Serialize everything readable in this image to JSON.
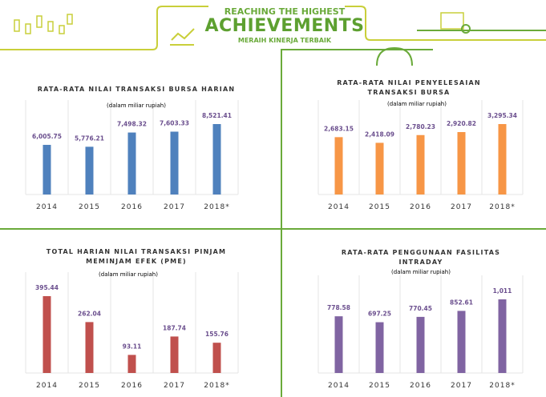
{
  "header": {
    "line1": "REACHING THE HIGHEST",
    "line2": "ACHIEVEMENTS",
    "line3": "MERAIH KINERJA TERBAIK"
  },
  "chart_data": [
    {
      "type": "bar",
      "title": "RATA-RATA NILAI TRANSAKSI BURSA HARIAN",
      "subtitle": "(dalam miliar rupiah)",
      "categories": [
        "2014",
        "2015",
        "2016",
        "2017",
        "2018*"
      ],
      "values": [
        6005.75,
        5776.21,
        7498.32,
        7603.33,
        8521.41
      ],
      "value_labels": [
        "6,005.75",
        "5,776.21",
        "7,498.32",
        "7,603.33",
        "8,521.41"
      ],
      "color": "#4f81bd"
    },
    {
      "type": "bar",
      "title": "RATA-RATA NILAI PENYELESAIAN TRANSAKSI BURSA",
      "subtitle": "(dalam miliar rupiah)",
      "categories": [
        "2014",
        "2015",
        "2016",
        "2017",
        "2018*"
      ],
      "values": [
        2683.15,
        2418.09,
        2780.23,
        2920.82,
        3295.34
      ],
      "value_labels": [
        "2,683.15",
        "2,418.09",
        "2,780.23",
        "2,920.82",
        "3,295.34"
      ],
      "color": "#f79646"
    },
    {
      "type": "bar",
      "title": "TOTAL HARIAN NILAI TRANSAKSI PINJAM MEMINJAM EFEK (PME)",
      "subtitle": "(dalam miliar rupiah)",
      "categories": [
        "2014",
        "2015",
        "2016",
        "2017",
        "2018*"
      ],
      "values": [
        395.44,
        262.04,
        93.11,
        187.74,
        155.76
      ],
      "color": "#c0504d"
    },
    {
      "type": "bar",
      "title": "RATA-RATA  PENGGUNAAN FASILITAS INTRADAY",
      "subtitle": "(dalam miliar rupiah)",
      "categories": [
        "2014",
        "2015",
        "2016",
        "2017",
        "2018*"
      ],
      "values": [
        778.58,
        697.25,
        770.45,
        852.61,
        1011
      ],
      "value_labels": [
        "778.58",
        "697.25",
        "770.45",
        "852.61",
        "1,011"
      ],
      "color": "#8064a2"
    }
  ]
}
